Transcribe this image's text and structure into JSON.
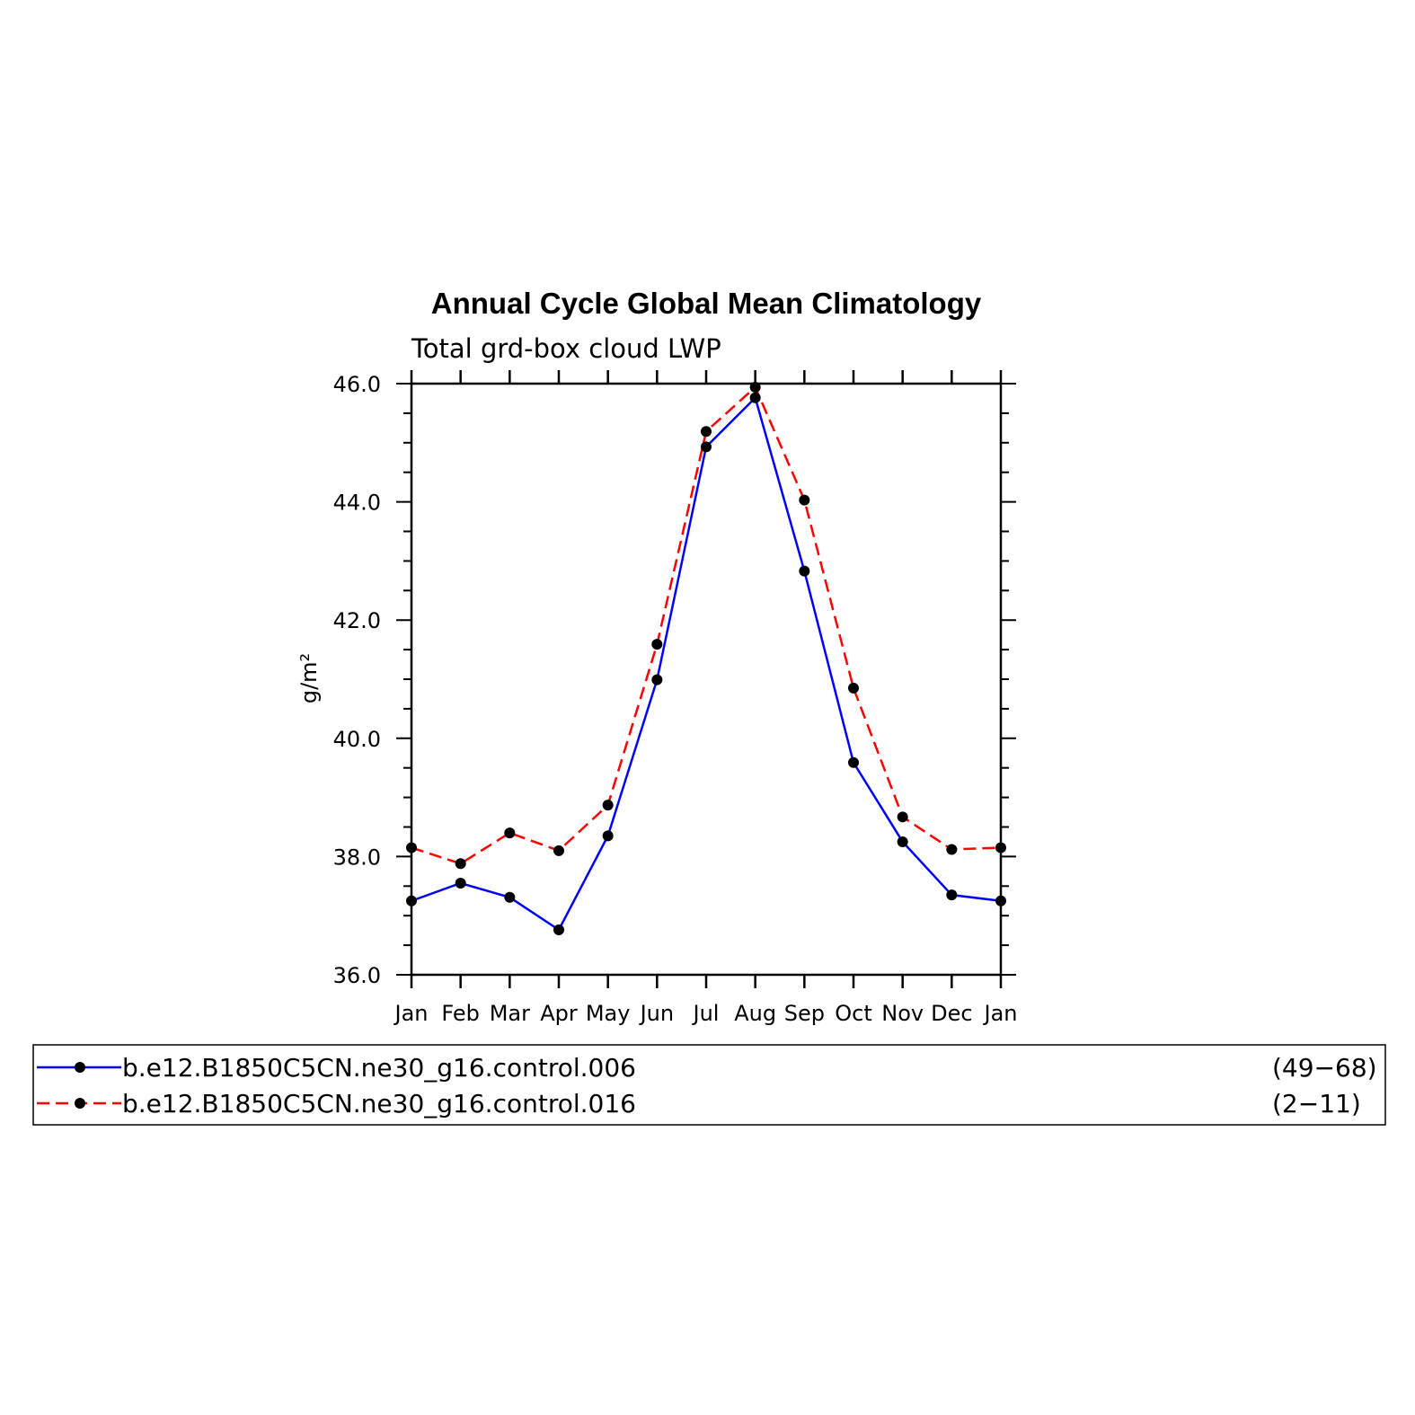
{
  "chart_data": {
    "type": "line",
    "title": "Annual Cycle Global Mean Climatology",
    "subtitle": "Total grd-box cloud LWP",
    "ylabel": "g/m²",
    "xlabel": "",
    "categories": [
      "Jan",
      "Feb",
      "Mar",
      "Apr",
      "May",
      "Jun",
      "Jul",
      "Aug",
      "Sep",
      "Oct",
      "Nov",
      "Dec",
      "Jan"
    ],
    "ylim": [
      36.0,
      46.0
    ],
    "yticks": [
      "36.0",
      "38.0",
      "40.0",
      "42.0",
      "44.0",
      "46.0"
    ],
    "grid": false,
    "legend_position": "bottom",
    "series": [
      {
        "name": "b.e12.B1850C5CN.ne30_g16.control.006",
        "years": "(49−68)",
        "color": "#0000ff",
        "dash": "solid",
        "values": [
          37.25,
          37.55,
          37.31,
          36.76,
          38.35,
          40.99,
          44.93,
          45.76,
          42.83,
          39.59,
          38.25,
          37.35,
          37.25
        ]
      },
      {
        "name": "b.e12.B1850C5CN.ne30_g16.control.016",
        "years": "(2−11)",
        "color": "#ff0000",
        "dash": "dashed",
        "values": [
          38.15,
          37.88,
          38.4,
          38.1,
          38.87,
          41.59,
          45.19,
          45.94,
          44.03,
          40.85,
          38.67,
          38.12,
          38.15
        ]
      }
    ]
  }
}
